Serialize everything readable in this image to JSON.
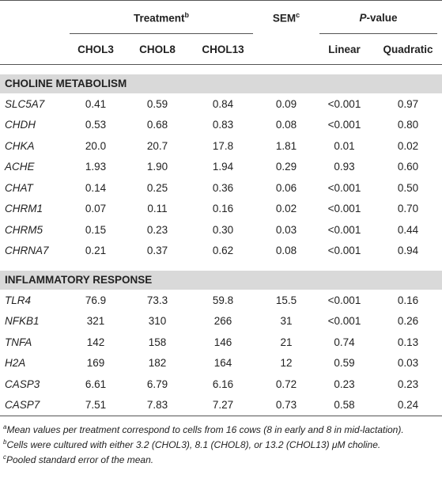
{
  "header": {
    "treatment": "Treatment",
    "treatment_sup": "b",
    "sem": "SEM",
    "sem_sup": "c",
    "p_italic": "P",
    "p_rest": "-value",
    "treatment_columns": [
      "CHOL3",
      "CHOL8",
      "CHOL13"
    ],
    "pvalue_columns": [
      "Linear",
      "Quadratic"
    ]
  },
  "sections": [
    {
      "title": "CHOLINE METABOLISM",
      "rows": [
        [
          "SLC5A7",
          "0.41",
          "0.59",
          "0.84",
          "0.09",
          "<0.001",
          "0.97"
        ],
        [
          "CHDH",
          "0.53",
          "0.68",
          "0.83",
          "0.08",
          "<0.001",
          "0.80"
        ],
        [
          "CHKA",
          "20.0",
          "20.7",
          "17.8",
          "1.81",
          "0.01",
          "0.02"
        ],
        [
          "ACHE",
          "1.93",
          "1.90",
          "1.94",
          "0.29",
          "0.93",
          "0.60"
        ],
        [
          "CHAT",
          "0.14",
          "0.25",
          "0.36",
          "0.06",
          "<0.001",
          "0.50"
        ],
        [
          "CHRM1",
          "0.07",
          "0.11",
          "0.16",
          "0.02",
          "<0.001",
          "0.70"
        ],
        [
          "CHRM5",
          "0.15",
          "0.23",
          "0.30",
          "0.03",
          "<0.001",
          "0.44"
        ],
        [
          "CHRNA7",
          "0.21",
          "0.37",
          "0.62",
          "0.08",
          "<0.001",
          "0.94"
        ]
      ]
    },
    {
      "title": "INFLAMMATORY RESPONSE",
      "rows": [
        [
          "TLR4",
          "76.9",
          "73.3",
          "59.8",
          "15.5",
          "<0.001",
          "0.16"
        ],
        [
          "NFKB1",
          "321",
          "310",
          "266",
          "31",
          "<0.001",
          "0.26"
        ],
        [
          "TNFA",
          "142",
          "158",
          "146",
          "21",
          "0.74",
          "0.13"
        ],
        [
          "H2A",
          "169",
          "182",
          "164",
          "12",
          "0.59",
          "0.03"
        ],
        [
          "CASP3",
          "6.61",
          "6.79",
          "6.16",
          "0.72",
          "0.23",
          "0.23"
        ],
        [
          "CASP7",
          "7.51",
          "7.83",
          "7.27",
          "0.73",
          "0.58",
          "0.24"
        ]
      ]
    }
  ],
  "footnotes": [
    {
      "mark": "a",
      "text": "Mean values per treatment correspond to cells from 16 cows (8 in early and 8 in mid-lactation)."
    },
    {
      "mark": "b",
      "text": "Cells were cultured with either 3.2 (CHOL3), 8.1 (CHOL8), or 13.2 (CHOL13) μM choline."
    },
    {
      "mark": "c",
      "text": "Pooled standard error of the mean."
    }
  ]
}
